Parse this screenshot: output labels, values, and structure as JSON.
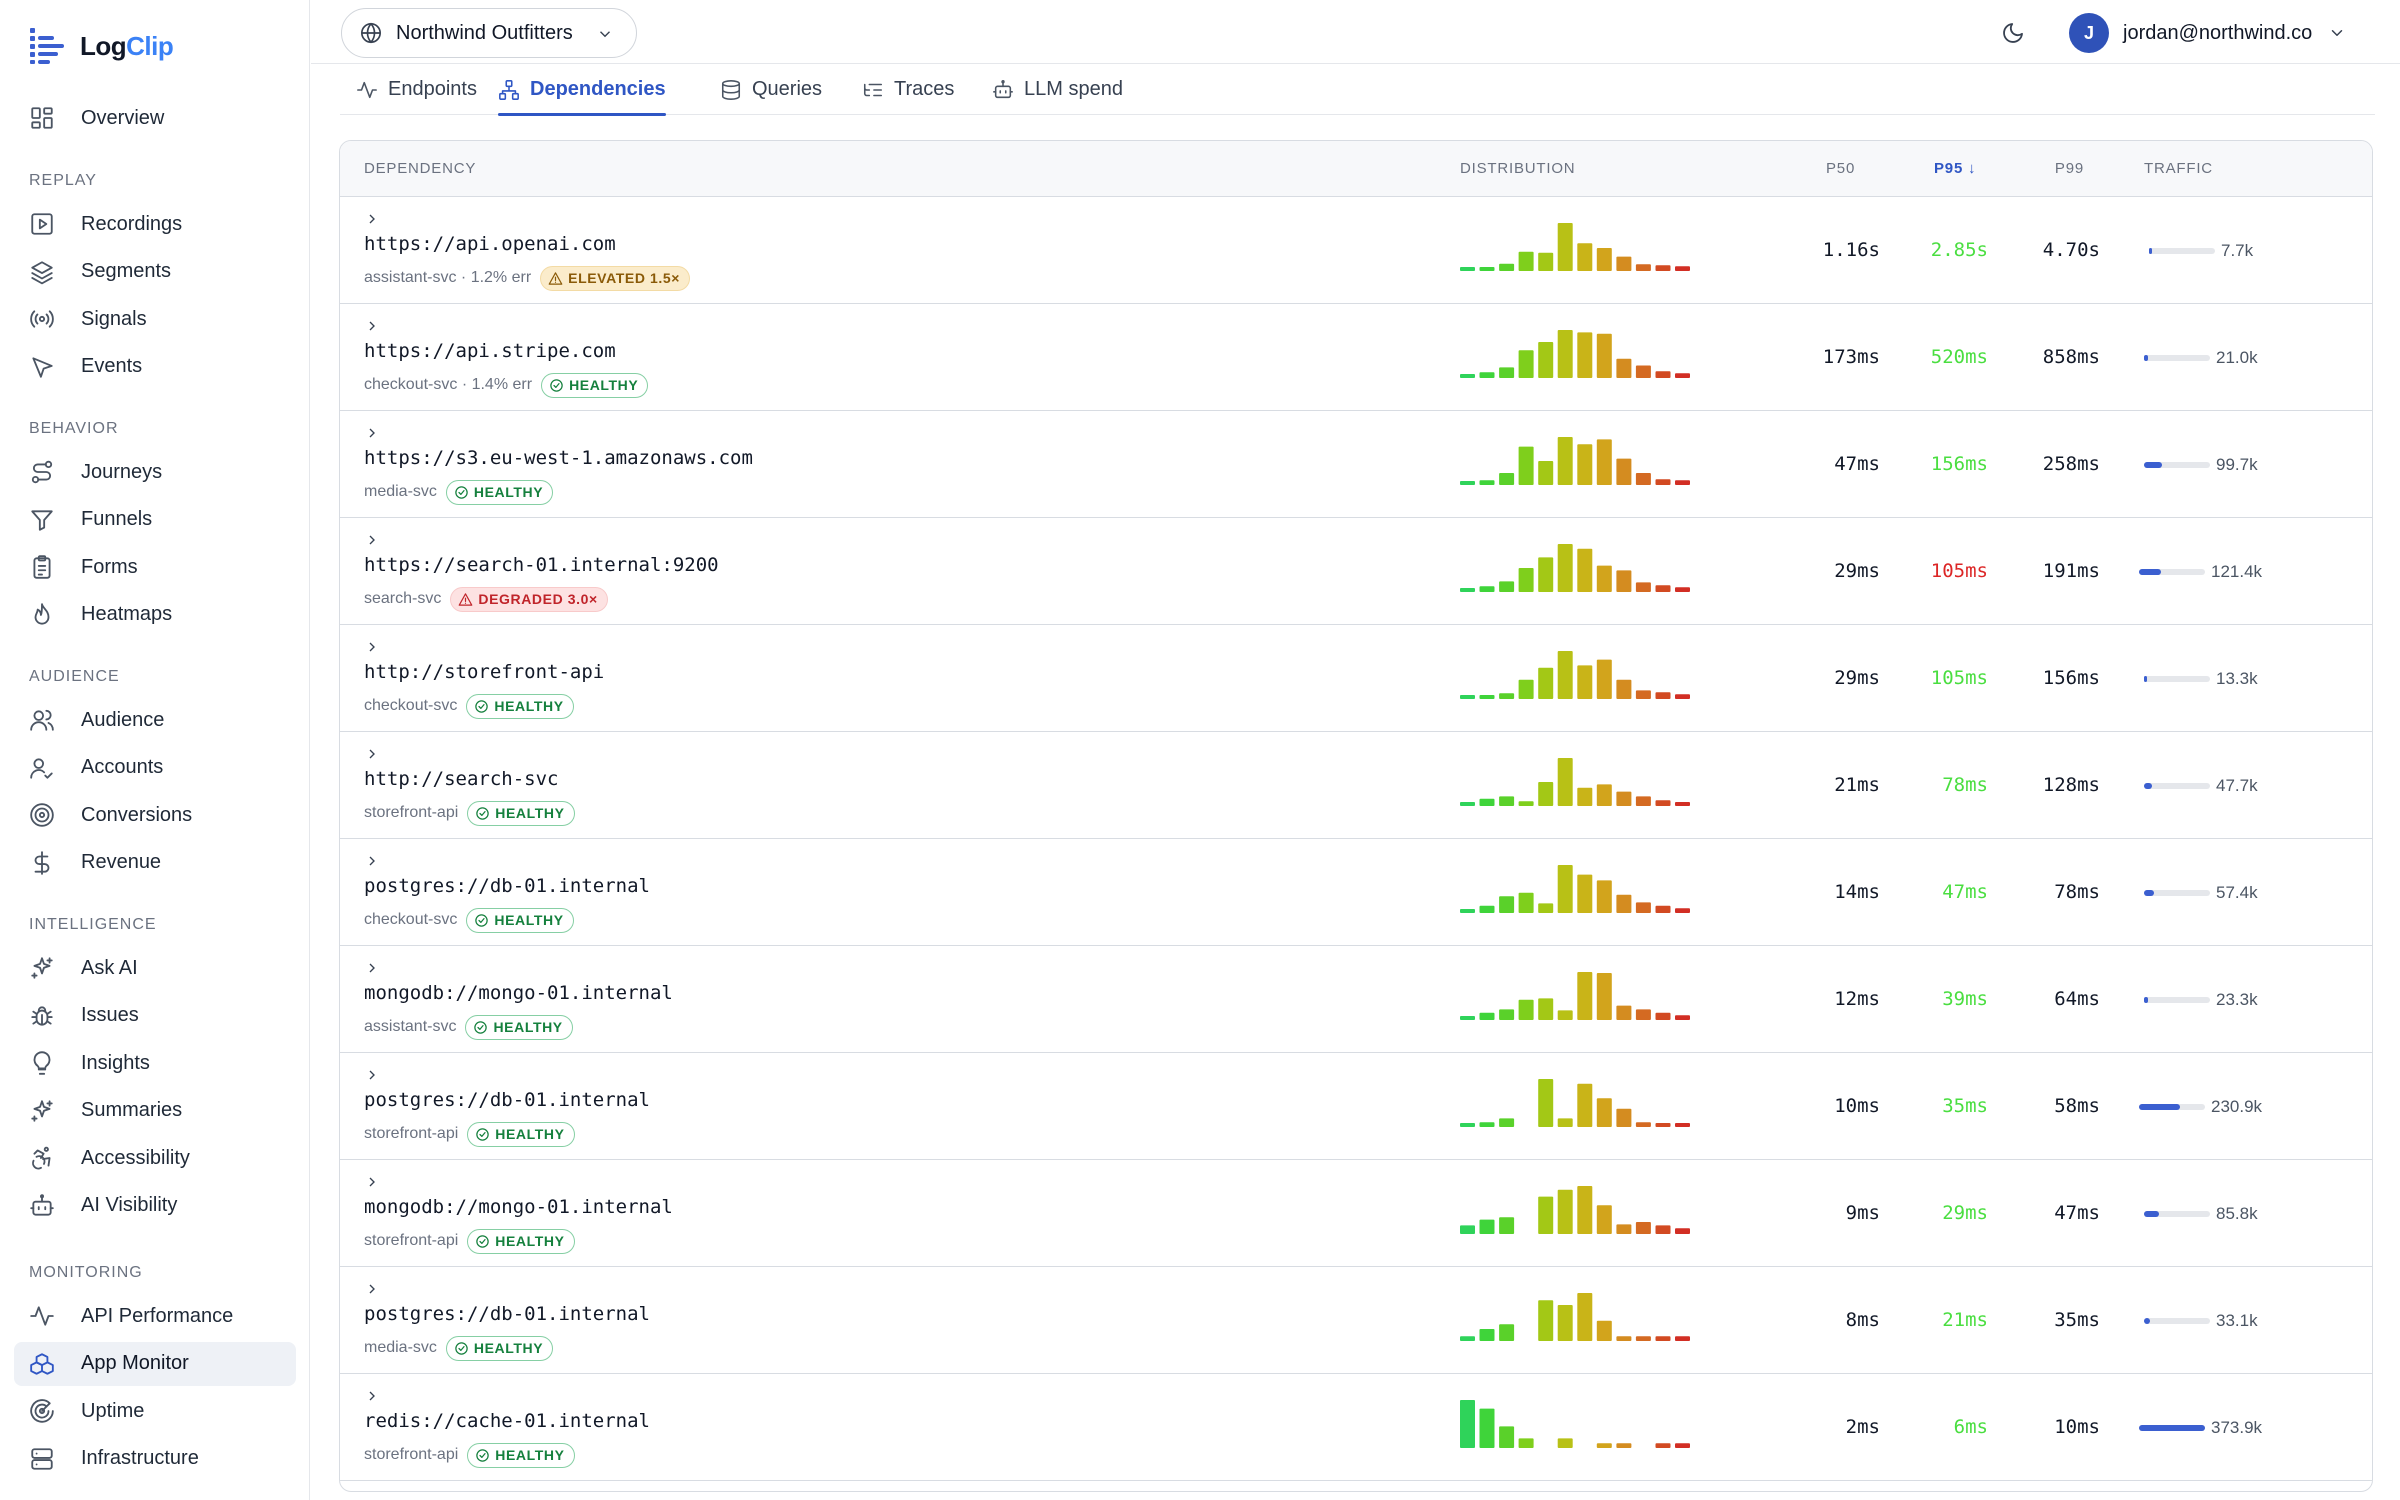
{
  "brand": {
    "name_a": "Log",
    "name_b": "Clip"
  },
  "sidebar": {
    "overview": {
      "label": "Overview",
      "icon": "grid-icon"
    },
    "sections": [
      {
        "title": "REPLAY",
        "items": [
          {
            "label": "Recordings",
            "icon": "play-square-icon"
          },
          {
            "label": "Segments",
            "icon": "layers-icon"
          },
          {
            "label": "Signals",
            "icon": "broadcast-icon"
          },
          {
            "label": "Events",
            "icon": "cursor-icon"
          }
        ]
      },
      {
        "title": "BEHAVIOR",
        "items": [
          {
            "label": "Journeys",
            "icon": "route-icon"
          },
          {
            "label": "Funnels",
            "icon": "funnel-icon"
          },
          {
            "label": "Forms",
            "icon": "clipboard-icon"
          },
          {
            "label": "Heatmaps",
            "icon": "flame-icon"
          }
        ]
      },
      {
        "title": "AUDIENCE",
        "items": [
          {
            "label": "Audience",
            "icon": "users-icon"
          },
          {
            "label": "Accounts",
            "icon": "user-check-icon"
          },
          {
            "label": "Conversions",
            "icon": "target-icon"
          },
          {
            "label": "Revenue",
            "icon": "dollar-icon"
          }
        ]
      },
      {
        "title": "INTELLIGENCE",
        "items": [
          {
            "label": "Ask AI",
            "icon": "sparkles-icon"
          },
          {
            "label": "Issues",
            "icon": "bug-icon"
          },
          {
            "label": "Insights",
            "icon": "lightbulb-icon"
          },
          {
            "label": "Summaries",
            "icon": "sparkles-icon"
          },
          {
            "label": "Accessibility",
            "icon": "accessibility-icon"
          },
          {
            "label": "AI Visibility",
            "icon": "robot-icon"
          }
        ]
      },
      {
        "title": "MONITORING",
        "items": [
          {
            "label": "API Performance",
            "icon": "activity-icon"
          },
          {
            "label": "App Monitor",
            "icon": "boxes-icon",
            "active": true
          },
          {
            "label": "Uptime",
            "icon": "radar-icon"
          },
          {
            "label": "Infrastructure",
            "icon": "server-icon"
          }
        ]
      }
    ]
  },
  "topbar": {
    "org": "Northwind Outfitters",
    "user_initial": "J",
    "user_email": "jordan@northwind.co"
  },
  "tabs": [
    {
      "label": "Endpoints",
      "icon": "activity-icon"
    },
    {
      "label": "Dependencies",
      "icon": "network-icon",
      "active": true
    },
    {
      "label": "Queries",
      "icon": "database-icon"
    },
    {
      "label": "Traces",
      "icon": "list-tree-icon"
    },
    {
      "label": "LLM spend",
      "icon": "robot-icon"
    }
  ],
  "table": {
    "headers": {
      "dependency": "DEPENDENCY",
      "distribution": "DISTRIBUTION",
      "p50": "P50",
      "p95": "P95 ↓",
      "p99": "P99",
      "traffic": "TRAFFIC"
    },
    "rows": [
      {
        "url": "https://api.openai.com",
        "svc": "assistant-svc · 1.2% err",
        "status": "elevated",
        "badge": "ELEVATED 1.5×",
        "p50": "1.16s",
        "p95": "2.85s",
        "p95_color": "#4ade40",
        "p99": "4.70s",
        "traffic": "7.7k",
        "traffic_frac": 0.03,
        "dist": [
          0.08,
          0.08,
          0.15,
          0.4,
          0.38,
          1.0,
          0.58,
          0.48,
          0.3,
          0.14,
          0.12,
          0.1
        ]
      },
      {
        "url": "https://api.stripe.com",
        "svc": "checkout-svc · 1.4% err",
        "status": "healthy",
        "badge": "HEALTHY",
        "p50": "173ms",
        "p95": "520ms",
        "p95_color": "#4ade40",
        "p99": "858ms",
        "traffic": "21.0k",
        "traffic_frac": 0.06,
        "dist": [
          0.08,
          0.12,
          0.22,
          0.58,
          0.75,
          1.0,
          0.95,
          0.92,
          0.4,
          0.26,
          0.14,
          0.1
        ]
      },
      {
        "url": "https://s3.eu-west-1.amazonaws.com",
        "svc": "media-svc",
        "status": "healthy",
        "badge": "HEALTHY",
        "p50": "47ms",
        "p95": "156ms",
        "p95_color": "#4ade40",
        "p99": "258ms",
        "traffic": "99.7k",
        "traffic_frac": 0.27,
        "dist": [
          0.08,
          0.1,
          0.25,
          0.8,
          0.5,
          1.0,
          0.85,
          0.95,
          0.55,
          0.25,
          0.12,
          0.1
        ]
      },
      {
        "url": "https://search-01.internal:9200",
        "svc": "search-svc",
        "status": "degraded",
        "badge": "DEGRADED 3.0×",
        "p50": "29ms",
        "p95": "105ms",
        "p95_color": "#dc2626",
        "p99": "191ms",
        "traffic": "121.4k",
        "traffic_frac": 0.33,
        "dist": [
          0.08,
          0.12,
          0.22,
          0.5,
          0.72,
          1.0,
          0.9,
          0.55,
          0.45,
          0.2,
          0.14,
          0.1
        ]
      },
      {
        "url": "http://storefront-api",
        "svc": "checkout-svc",
        "status": "healthy",
        "badge": "HEALTHY",
        "p50": "29ms",
        "p95": "105ms",
        "p95_color": "#4ade40",
        "p99": "156ms",
        "traffic": "13.3k",
        "traffic_frac": 0.04,
        "dist": [
          0.08,
          0.08,
          0.12,
          0.4,
          0.65,
          1.0,
          0.7,
          0.82,
          0.4,
          0.18,
          0.14,
          0.1
        ]
      },
      {
        "url": "http://search-svc",
        "svc": "storefront-api",
        "status": "healthy",
        "badge": "HEALTHY",
        "p50": "21ms",
        "p95": "78ms",
        "p95_color": "#4ade40",
        "p99": "128ms",
        "traffic": "47.7k",
        "traffic_frac": 0.12,
        "dist": [
          0.08,
          0.15,
          0.2,
          0.1,
          0.5,
          1.0,
          0.38,
          0.45,
          0.3,
          0.2,
          0.12,
          0.08
        ]
      },
      {
        "url": "postgres://db-01.internal",
        "svc": "checkout-svc",
        "status": "healthy",
        "badge": "HEALTHY",
        "p50": "14ms",
        "p95": "47ms",
        "p95_color": "#4ade40",
        "p99": "78ms",
        "traffic": "57.4k",
        "traffic_frac": 0.15,
        "dist": [
          0.08,
          0.15,
          0.35,
          0.42,
          0.2,
          1.0,
          0.8,
          0.68,
          0.38,
          0.22,
          0.15,
          0.1
        ]
      },
      {
        "url": "mongodb://mongo-01.internal",
        "svc": "assistant-svc",
        "status": "healthy",
        "badge": "HEALTHY",
        "p50": "12ms",
        "p95": "39ms",
        "p95_color": "#4ade40",
        "p99": "64ms",
        "traffic": "23.3k",
        "traffic_frac": 0.06,
        "dist": [
          0.08,
          0.15,
          0.22,
          0.42,
          0.45,
          0.2,
          1.0,
          0.98,
          0.3,
          0.22,
          0.15,
          0.1
        ]
      },
      {
        "url": "postgres://db-01.internal",
        "svc": "storefront-api",
        "status": "healthy",
        "badge": "HEALTHY",
        "p50": "10ms",
        "p95": "35ms",
        "p95_color": "#4ade40",
        "p99": "58ms",
        "traffic": "230.9k",
        "traffic_frac": 0.62,
        "dist": [
          0.06,
          0.1,
          0.18,
          0.0,
          1.0,
          0.18,
          0.9,
          0.6,
          0.38,
          0.1,
          0.08,
          0.08
        ]
      },
      {
        "url": "mongodb://mongo-01.internal",
        "svc": "storefront-api",
        "status": "healthy",
        "badge": "HEALTHY",
        "p50": "9ms",
        "p95": "29ms",
        "p95_color": "#4ade40",
        "p99": "47ms",
        "traffic": "85.8k",
        "traffic_frac": 0.23,
        "dist": [
          0.18,
          0.3,
          0.35,
          0.0,
          0.78,
          0.92,
          1.0,
          0.6,
          0.2,
          0.25,
          0.18,
          0.12
        ]
      },
      {
        "url": "postgres://db-01.internal",
        "svc": "media-svc",
        "status": "healthy",
        "badge": "HEALTHY",
        "p50": "8ms",
        "p95": "21ms",
        "p95_color": "#4ade40",
        "p99": "35ms",
        "traffic": "33.1k",
        "traffic_frac": 0.09,
        "dist": [
          0.1,
          0.25,
          0.35,
          0.0,
          0.85,
          0.75,
          1.0,
          0.42,
          0.1,
          0.1,
          0.1,
          0.1
        ]
      },
      {
        "url": "redis://cache-01.internal",
        "svc": "storefront-api",
        "status": "healthy",
        "badge": "HEALTHY",
        "p50": "2ms",
        "p95": "6ms",
        "p95_color": "#4ade40",
        "p99": "10ms",
        "traffic": "373.9k",
        "traffic_frac": 1.0,
        "dist": [
          1.0,
          0.82,
          0.45,
          0.2,
          0.0,
          0.2,
          0.0,
          0.1,
          0.1,
          0.0,
          0.1,
          0.1
        ]
      }
    ]
  },
  "colors": {
    "accent": "#2f56c4",
    "bar_gradient": [
      "#2fd35a",
      "#3fd43a",
      "#5ad12a",
      "#7fcf1c",
      "#a3c816",
      "#b8c116",
      "#c9b418",
      "#d2a41c",
      "#d48c20",
      "#d46a22",
      "#d24a22",
      "#d22e24"
    ]
  }
}
